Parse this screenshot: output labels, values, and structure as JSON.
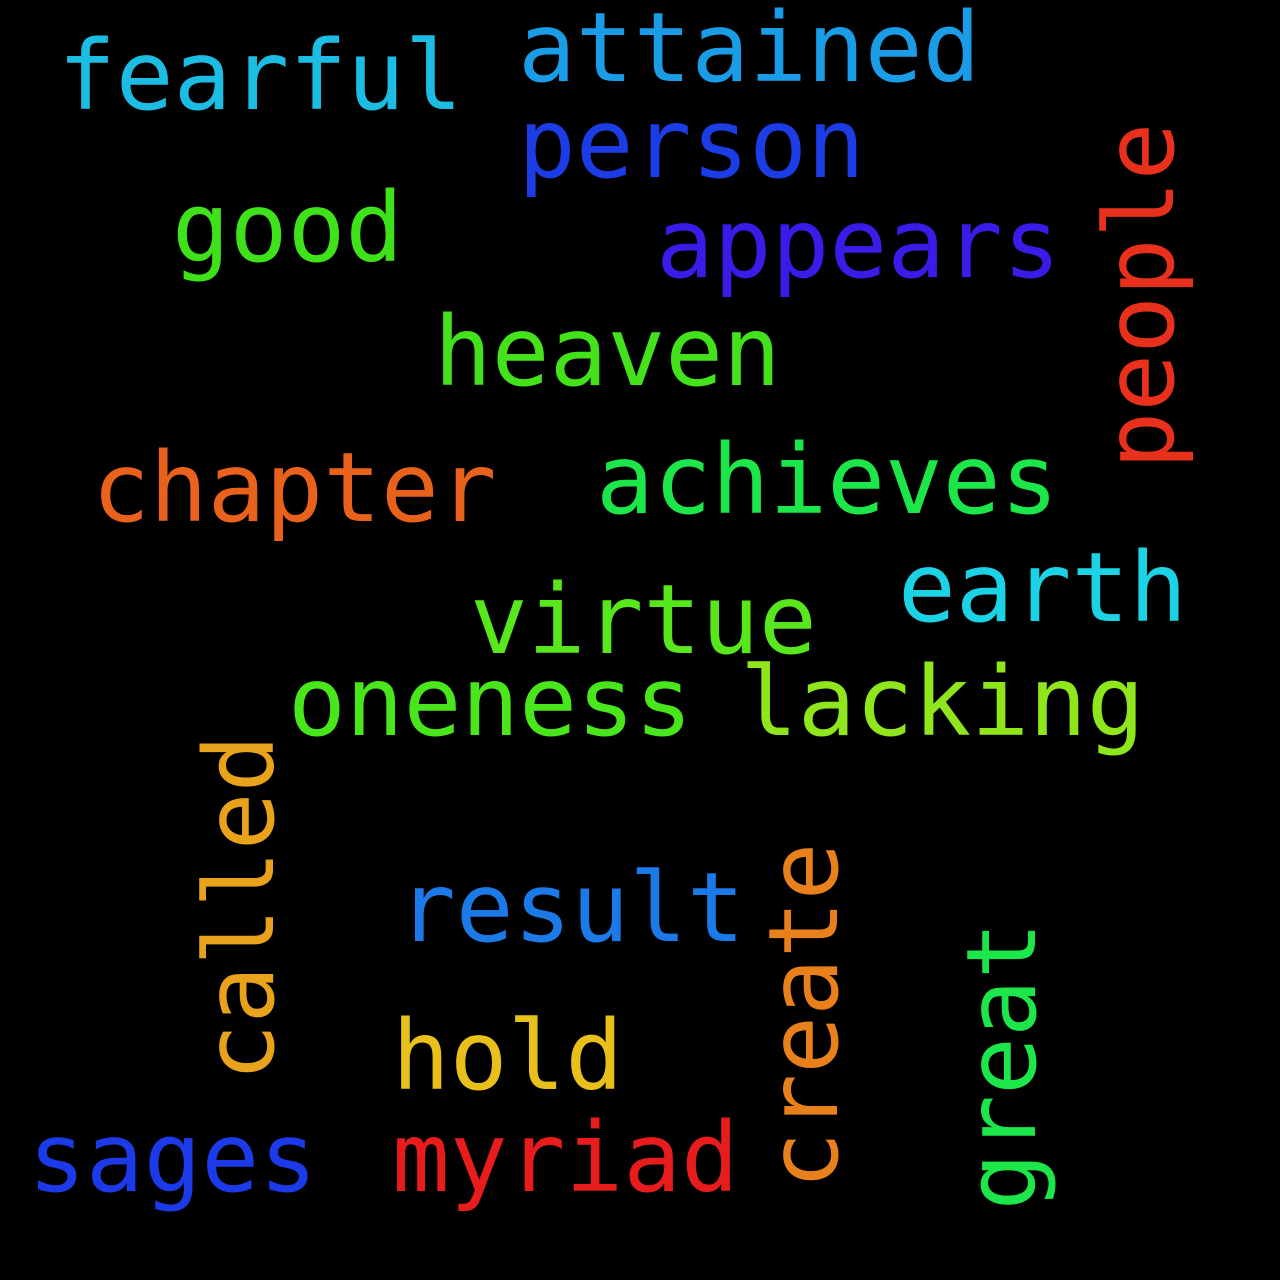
{
  "words": {
    "fearful": {
      "text": "fearful",
      "color": "#1dbde3"
    },
    "attained": {
      "text": "attained",
      "color": "#1a9de6"
    },
    "person": {
      "text": "person",
      "color": "#1c3de6"
    },
    "good": {
      "text": "good",
      "color": "#3fe21a"
    },
    "appears": {
      "text": "appears",
      "color": "#3a1ce8"
    },
    "people": {
      "text": "people",
      "color": "#e8301c"
    },
    "heaven": {
      "text": "heaven",
      "color": "#44e21a"
    },
    "chapter": {
      "text": "chapter",
      "color": "#e8621c"
    },
    "achieves": {
      "text": "achieves",
      "color": "#1ce64a"
    },
    "earth": {
      "text": "earth",
      "color": "#1cd3e6"
    },
    "virtue": {
      "text": "virtue",
      "color": "#58e61c"
    },
    "oneness": {
      "text": "oneness",
      "color": "#4ae61c"
    },
    "lacking": {
      "text": "lacking",
      "color": "#8fe61c"
    },
    "called": {
      "text": "called",
      "color": "#e8a21c"
    },
    "result": {
      "text": "result",
      "color": "#1c7ae8"
    },
    "create": {
      "text": "create",
      "color": "#e8801c"
    },
    "great": {
      "text": "great",
      "color": "#1ce64a"
    },
    "hold": {
      "text": "hold",
      "color": "#e8c01c"
    },
    "sages": {
      "text": "sages",
      "color": "#1c3ae8"
    },
    "myriad": {
      "text": "myriad",
      "color": "#e81c1c"
    }
  }
}
